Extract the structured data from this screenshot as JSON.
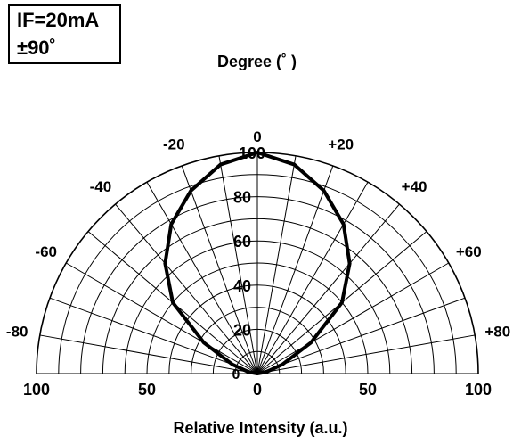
{
  "legend": {
    "line1": "IF=20mA",
    "line2": "±90˚"
  },
  "chart_data": {
    "type": "polar",
    "title": "Degree (˚ )",
    "xlabel": "Relative Intensity (a.u.)",
    "angle_range": [
      -90,
      90
    ],
    "angle_ticks": [
      {
        "value": -80,
        "label": "-80"
      },
      {
        "value": -60,
        "label": "-60"
      },
      {
        "value": -40,
        "label": "-40"
      },
      {
        "value": -20,
        "label": "-20"
      },
      {
        "value": 0,
        "label": "0"
      },
      {
        "value": 20,
        "label": "+20"
      },
      {
        "value": 40,
        "label": "+40"
      },
      {
        "value": 60,
        "label": "+60"
      },
      {
        "value": 80,
        "label": "+80"
      }
    ],
    "radial_range": [
      0,
      100
    ],
    "radial_ticks": [
      {
        "value": 20,
        "label": "20"
      },
      {
        "value": 40,
        "label": "40"
      },
      {
        "value": 60,
        "label": "60"
      },
      {
        "value": 80,
        "label": "80"
      },
      {
        "value": 100,
        "label": "100"
      }
    ],
    "center_label": "0",
    "x_ticks": [
      {
        "value": -100,
        "label": "100"
      },
      {
        "value": -50,
        "label": "50"
      },
      {
        "value": 0,
        "label": "0"
      },
      {
        "value": 50,
        "label": "50"
      },
      {
        "value": 100,
        "label": "100"
      }
    ],
    "series": [
      {
        "angles": [
          -90,
          -80,
          -70,
          -60,
          -50,
          -40,
          -30,
          -20,
          -10,
          0,
          10,
          20,
          30,
          40,
          50,
          60,
          70,
          80,
          90
        ],
        "values": [
          0,
          4,
          12,
          28,
          50,
          65,
          78,
          88,
          96,
          100,
          96,
          88,
          78,
          65,
          50,
          28,
          12,
          4,
          0
        ]
      }
    ],
    "grid": true
  }
}
